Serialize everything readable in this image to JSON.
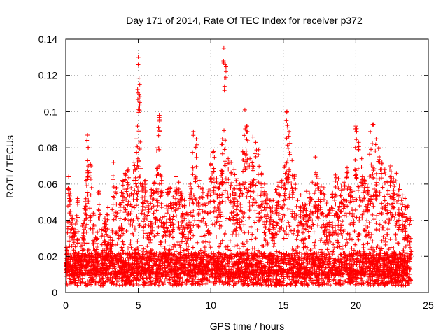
{
  "chart_data": {
    "type": "scatter",
    "title": "Day 171 of 2014, Rate Of TEC Index for receiver p372",
    "xlabel": "GPS time / hours",
    "ylabel": "ROTI / TECUs",
    "xlim": [
      0,
      25
    ],
    "ylim": [
      0,
      0.14
    ],
    "grid": true,
    "marker": "+",
    "marker_color": "#ff0000",
    "x_ticks": [
      0,
      5,
      10,
      15,
      20,
      25
    ],
    "x_tick_labels": [
      "0",
      "5",
      "10",
      "15",
      "20",
      "25"
    ],
    "y_ticks": [
      0,
      0.02,
      0.04,
      0.06,
      0.08,
      0.1,
      0.12,
      0.14
    ],
    "y_tick_labels": [
      "0",
      "0.02",
      "0.04",
      "0.06",
      "0.08",
      "0.1",
      "0.12",
      "0.14"
    ],
    "data_range_x": [
      0,
      23.8
    ],
    "series": [
      {
        "name": "ROTI",
        "x": [
          0.05,
          0.2,
          0.3,
          0.45,
          0.6,
          0.8,
          1.0,
          1.2,
          1.4,
          1.5,
          1.7,
          1.9,
          2.1,
          2.3,
          2.5,
          2.7,
          2.9,
          3.1,
          3.3,
          3.5,
          3.7,
          3.9,
          4.1,
          4.3,
          4.5,
          4.7,
          4.85,
          4.95,
          5.0,
          5.1,
          5.3,
          5.5,
          5.7,
          5.9,
          6.1,
          6.3,
          6.45,
          6.6,
          6.8,
          7.0,
          7.2,
          7.4,
          7.6,
          7.8,
          8.0,
          8.2,
          8.4,
          8.6,
          8.8,
          9.0,
          9.2,
          9.4,
          9.6,
          9.8,
          10.0,
          10.2,
          10.4,
          10.6,
          10.8,
          10.9,
          11.0,
          11.2,
          11.4,
          11.6,
          11.8,
          12.0,
          12.2,
          12.35,
          12.5,
          12.7,
          12.9,
          13.1,
          13.3,
          13.5,
          13.7,
          13.9,
          14.1,
          14.3,
          14.5,
          14.7,
          14.9,
          15.1,
          15.25,
          15.4,
          15.6,
          15.8,
          16.0,
          16.2,
          16.4,
          16.6,
          16.8,
          17.0,
          17.2,
          17.4,
          17.6,
          17.8,
          18.0,
          18.2,
          18.4,
          18.6,
          18.8,
          19.0,
          19.2,
          19.4,
          19.6,
          19.8,
          20.0,
          20.2,
          20.4,
          20.6,
          20.8,
          21.0,
          21.2,
          21.4,
          21.6,
          21.8,
          22.0,
          22.2,
          22.4,
          22.6,
          22.8,
          23.0,
          23.2,
          23.4,
          23.6,
          23.75
        ],
        "y": [
          0.025,
          0.064,
          0.055,
          0.041,
          0.033,
          0.052,
          0.02,
          0.038,
          0.062,
          0.087,
          0.071,
          0.044,
          0.03,
          0.056,
          0.035,
          0.041,
          0.047,
          0.029,
          0.072,
          0.058,
          0.049,
          0.062,
          0.066,
          0.068,
          0.058,
          0.072,
          0.085,
          0.092,
          0.13,
          0.115,
          0.06,
          0.062,
          0.048,
          0.057,
          0.061,
          0.08,
          0.098,
          0.062,
          0.042,
          0.057,
          0.058,
          0.053,
          0.064,
          0.061,
          0.055,
          0.051,
          0.043,
          0.06,
          0.089,
          0.085,
          0.062,
          0.058,
          0.049,
          0.055,
          0.076,
          0.078,
          0.063,
          0.06,
          0.085,
          0.135,
          0.126,
          0.074,
          0.072,
          0.068,
          0.063,
          0.06,
          0.078,
          0.101,
          0.092,
          0.074,
          0.086,
          0.083,
          0.079,
          0.066,
          0.06,
          0.054,
          0.051,
          0.051,
          0.057,
          0.061,
          0.062,
          0.07,
          0.1,
          0.089,
          0.073,
          0.065,
          0.051,
          0.054,
          0.048,
          0.056,
          0.055,
          0.061,
          0.075,
          0.063,
          0.059,
          0.058,
          0.05,
          0.046,
          0.055,
          0.065,
          0.063,
          0.059,
          0.061,
          0.069,
          0.058,
          0.056,
          0.092,
          0.083,
          0.074,
          0.062,
          0.059,
          0.089,
          0.093,
          0.085,
          0.08,
          0.072,
          0.068,
          0.061,
          0.07,
          0.063,
          0.066,
          0.059,
          0.054,
          0.052,
          0.048,
          0.041
        ]
      }
    ]
  }
}
